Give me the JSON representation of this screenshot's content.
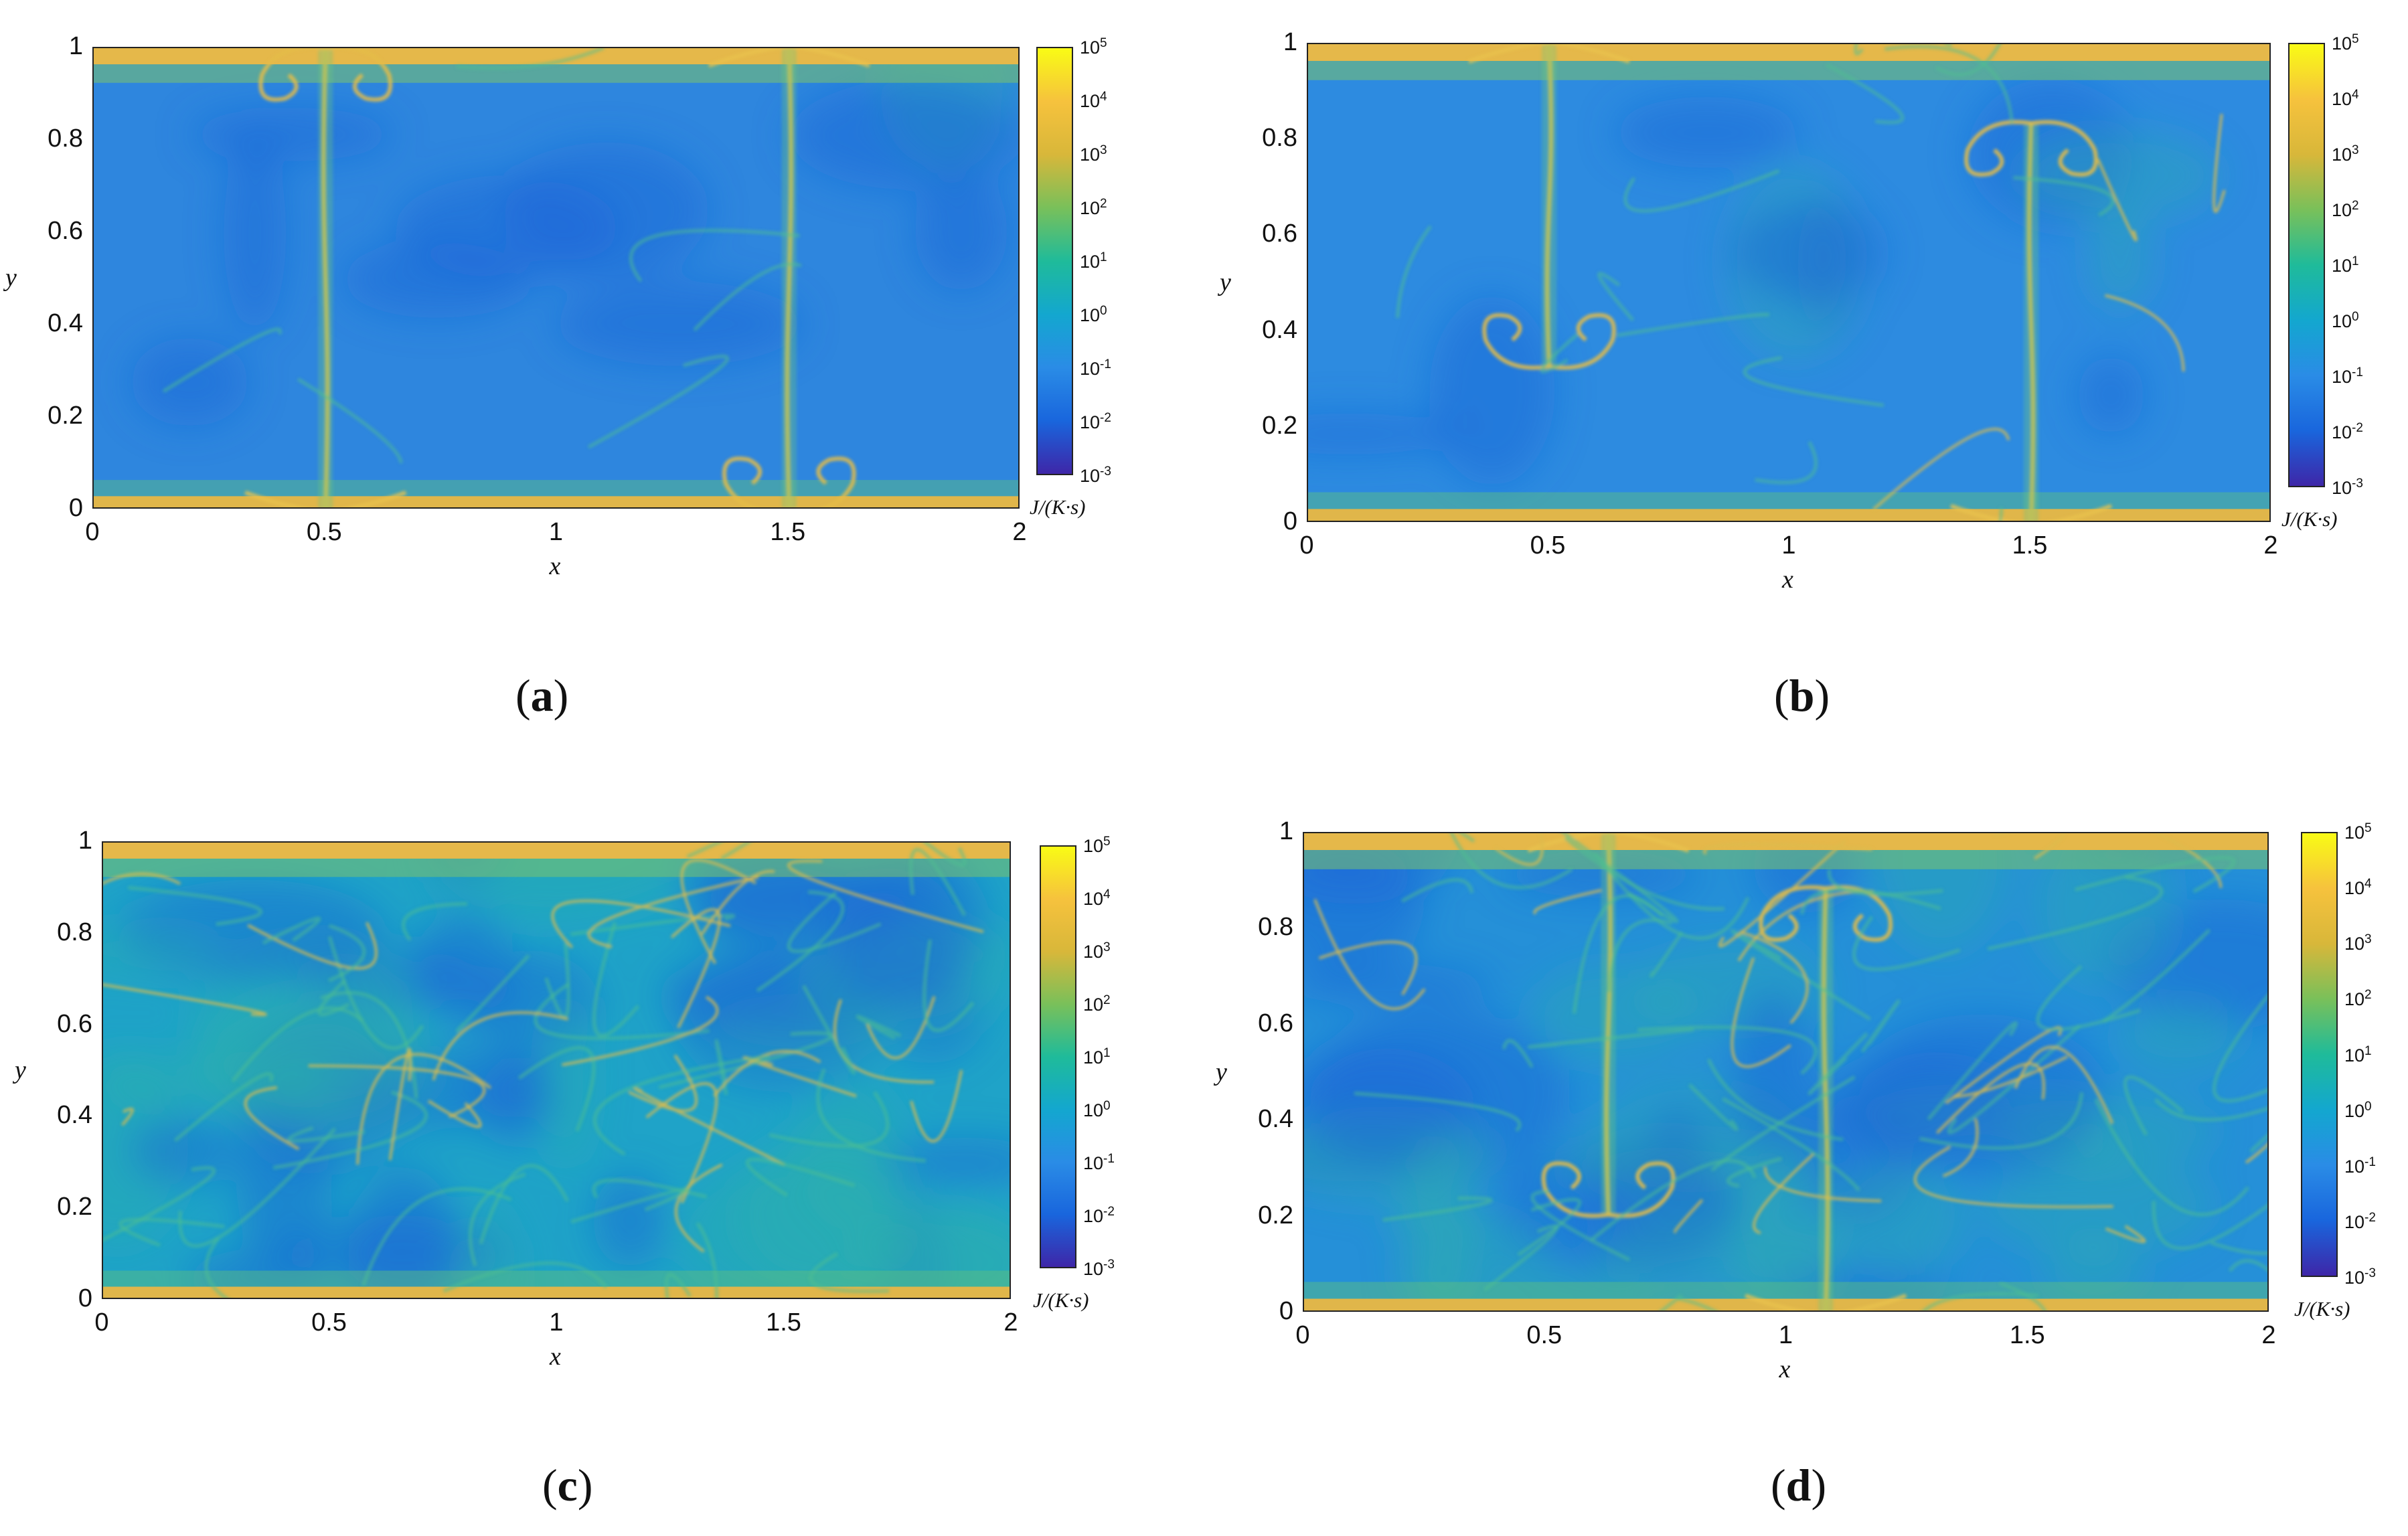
{
  "figure": {
    "panels": [
      {
        "id": "a",
        "caption_letter": "a",
        "xlabel": "x",
        "ylabel": "y",
        "xticks": [
          "0",
          "0.5",
          "1",
          "1.5",
          "2"
        ],
        "yticks": [
          "0",
          "0.2",
          "0.4",
          "0.6",
          "0.8",
          "1"
        ],
        "colorbar": {
          "ticks": [
            "10^5",
            "10^4",
            "10^3",
            "10^2",
            "10^1",
            "10^0",
            "10^-1",
            "10^-2",
            "10^-3"
          ],
          "unit": "J/(K·s)"
        }
      },
      {
        "id": "b",
        "caption_letter": "b",
        "xlabel": "x",
        "ylabel": "y",
        "xticks": [
          "0",
          "0.5",
          "1",
          "1.5",
          "2"
        ],
        "yticks": [
          "0",
          "0.2",
          "0.4",
          "0.6",
          "0.8",
          "1"
        ],
        "colorbar": {
          "ticks": [
            "10^5",
            "10^4",
            "10^3",
            "10^2",
            "10^1",
            "10^0",
            "10^-1",
            "10^-2",
            "10^-3"
          ],
          "unit": "J/(K·s)"
        }
      },
      {
        "id": "c",
        "caption_letter": "c",
        "xlabel": "x",
        "ylabel": "y",
        "xticks": [
          "0",
          "0.5",
          "1",
          "1.5",
          "2"
        ],
        "yticks": [
          "0",
          "0.2",
          "0.4",
          "0.6",
          "0.8",
          "1"
        ],
        "colorbar": {
          "ticks": [
            "10^5",
            "10^4",
            "10^3",
            "10^2",
            "10^1",
            "10^0",
            "10^-1",
            "10^-2",
            "10^-3"
          ],
          "unit": "J/(K·s)"
        }
      },
      {
        "id": "d",
        "caption_letter": "d",
        "xlabel": "x",
        "ylabel": "y",
        "xticks": [
          "0",
          "0.5",
          "1",
          "1.5",
          "2"
        ],
        "yticks": [
          "0",
          "0.2",
          "0.4",
          "0.6",
          "0.8",
          "1"
        ],
        "colorbar": {
          "ticks": [
            "10^5",
            "10^4",
            "10^3",
            "10^2",
            "10^1",
            "10^0",
            "10^-1",
            "10^-2",
            "10^-3"
          ],
          "unit": "J/(K·s)"
        }
      }
    ]
  },
  "chart_data": [
    {
      "type": "heatmap",
      "panel": "a",
      "xlabel": "x",
      "ylabel": "y",
      "xlim": [
        0,
        2
      ],
      "ylim": [
        0,
        1
      ],
      "color_scale": "log",
      "clim": [
        0.001,
        100000
      ],
      "colorbar_label": "J/(K·s)",
      "colormap": [
        "#3e26a8",
        "#1966dd",
        "#2a8ce6",
        "#13a7cf",
        "#1fbb9a",
        "#79c05a",
        "#d8b73a",
        "#f6c23d",
        "#f9fb15"
      ],
      "background_color": "#2e86de",
      "plumes": [
        {
          "x": 0.5,
          "from": "bottom"
        },
        {
          "x": 1.5,
          "from": "top"
        }
      ]
    },
    {
      "type": "heatmap",
      "panel": "b",
      "xlabel": "x",
      "ylabel": "y",
      "xlim": [
        0,
        2
      ],
      "ylim": [
        0,
        1
      ],
      "color_scale": "log",
      "clim": [
        0.001,
        100000
      ],
      "colorbar_label": "J/(K·s)",
      "background_color": "#2d8be0",
      "plumes": [
        {
          "x": 0.5,
          "from": "top"
        },
        {
          "x": 1.5,
          "from": "bottom"
        }
      ]
    },
    {
      "type": "heatmap",
      "panel": "c",
      "xlabel": "x",
      "ylabel": "y",
      "xlim": [
        0,
        2
      ],
      "ylim": [
        0,
        1
      ],
      "color_scale": "log",
      "clim": [
        0.001,
        100000
      ],
      "colorbar_label": "J/(K·s)",
      "background_color": "#1fa3c8"
    },
    {
      "type": "heatmap",
      "panel": "d",
      "xlabel": "x",
      "ylabel": "y",
      "xlim": [
        0,
        2
      ],
      "ylim": [
        0,
        1
      ],
      "color_scale": "log",
      "clim": [
        0.001,
        100000
      ],
      "colorbar_label": "J/(K·s)",
      "background_color": "#2590d8",
      "plumes": [
        {
          "x": 0.63,
          "from": "top"
        },
        {
          "x": 1.08,
          "from": "bottom"
        }
      ]
    }
  ]
}
